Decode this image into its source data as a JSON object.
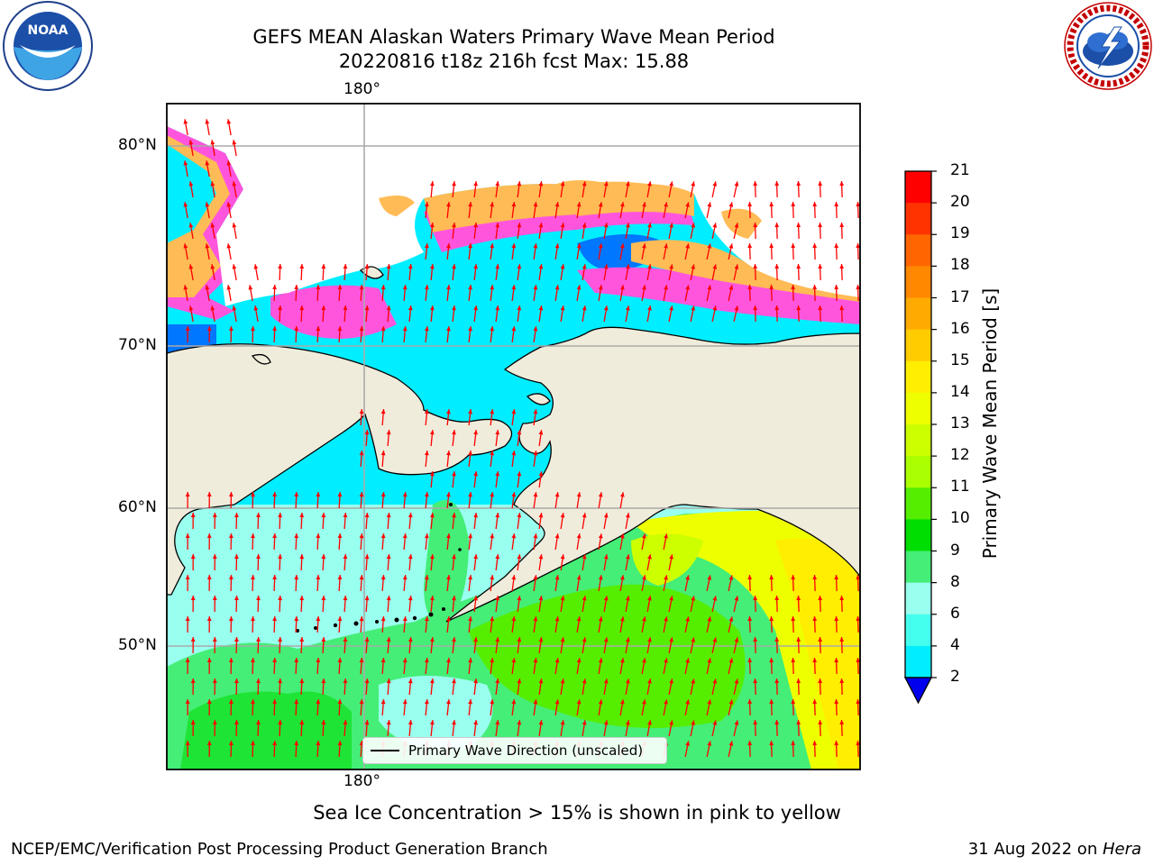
{
  "title": {
    "line1": "GEFS MEAN Alaskan Waters Primary Wave Mean Period",
    "line2": "20220816 t18z 216h fcst   Max: 15.88"
  },
  "map": {
    "lon_label_top": "180°",
    "lon_label_bottom": "180°",
    "lat_labels": [
      "80°N",
      "70°N",
      "60°N",
      "50°N"
    ],
    "land_color": "#efecdc",
    "arrow_color": "#ff0000"
  },
  "colorbar": {
    "label": "Primary Wave Mean Period [s]",
    "ticks": [
      "21",
      "20",
      "19",
      "18",
      "17",
      "16",
      "15",
      "14",
      "13",
      "12",
      "11",
      "10",
      "9",
      "8",
      "6",
      "4",
      "2"
    ],
    "colors": [
      "#ff0000",
      "#ff3300",
      "#ff6600",
      "#ff8800",
      "#ffaa00",
      "#ffcc00",
      "#ffee00",
      "#eeff00",
      "#ccff00",
      "#aaff00",
      "#55ee00",
      "#00dd00",
      "#44ee77",
      "#99ffee",
      "#44ffee",
      "#00eeff",
      "#0077ff"
    ],
    "extend_color": "#0000ee"
  },
  "legend": {
    "label": "Primary Wave Direction (unscaled)"
  },
  "note": "Sea Ice Concentration > 15% is shown in pink to yellow",
  "credit": {
    "left": "NCEP/EMC/Verification Post Processing Product Generation Branch",
    "right_date": "31 Aug 2022 on ",
    "right_machine": "Hera"
  },
  "logos": {
    "noaa_text": "NOAA",
    "nws_text": "NATIONAL WEATHER SERVICE"
  }
}
